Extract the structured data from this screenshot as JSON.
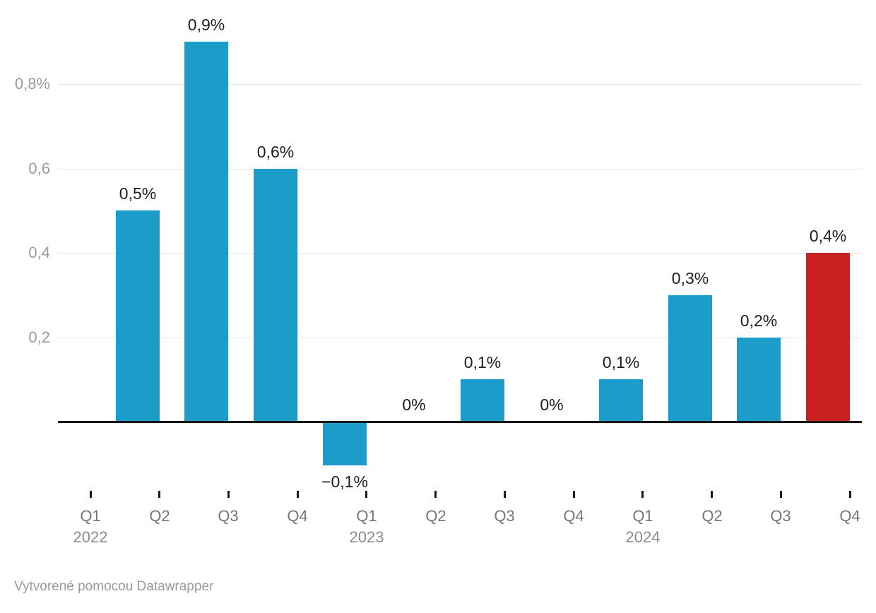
{
  "chart_data": {
    "type": "bar",
    "title": "",
    "xlabel": "",
    "ylabel": "",
    "unit": "%",
    "categories": [
      "Q1 2022",
      "Q2 2022",
      "Q3 2022",
      "Q4 2022",
      "Q1 2023",
      "Q2 2023",
      "Q3 2023",
      "Q4 2023",
      "Q1 2024",
      "Q2 2024",
      "Q3 2024",
      "Q4 2024"
    ],
    "values": [
      0.5,
      0.9,
      0.6,
      -0.1,
      0,
      0.1,
      0,
      0.1,
      0.3,
      0.2,
      0.4,
      null
    ],
    "value_labels": [
      "0,5%",
      "0,9%",
      "0,6%",
      "−0,1%",
      "0%",
      "0,1%",
      "0%",
      "0,1%",
      "0,3%",
      "0,2%",
      "0,4%",
      ""
    ],
    "highlight_index": 10,
    "ylim": [
      -0.2,
      1.0
    ],
    "grid": true,
    "legend": false,
    "y_axis_ticks": [
      {
        "value": 0.8,
        "label": "0,8%"
      },
      {
        "value": 0.6,
        "label": "0,6"
      },
      {
        "value": 0.4,
        "label": "0,4"
      },
      {
        "value": 0.2,
        "label": "0,2"
      }
    ],
    "x_axis_ticks": [
      {
        "quarter": "Q1",
        "year": "2022"
      },
      {
        "quarter": "Q2",
        "year": ""
      },
      {
        "quarter": "Q3",
        "year": ""
      },
      {
        "quarter": "Q4",
        "year": ""
      },
      {
        "quarter": "Q1",
        "year": "2023"
      },
      {
        "quarter": "Q2",
        "year": ""
      },
      {
        "quarter": "Q3",
        "year": ""
      },
      {
        "quarter": "Q4",
        "year": ""
      },
      {
        "quarter": "Q1",
        "year": "2024"
      },
      {
        "quarter": "Q2",
        "year": ""
      },
      {
        "quarter": "Q3",
        "year": ""
      },
      {
        "quarter": "Q4",
        "year": ""
      }
    ],
    "colors": {
      "bar": "#1c9dc9",
      "bar_highlight": "#c9211f",
      "gridline": "#e3e3e3",
      "zero_line": "#161616",
      "value_text": "#1d1d1d",
      "axis_text": "#9b9b9b",
      "x_tick_text": "#767676",
      "year_text": "#8c8c8c"
    }
  },
  "footer": {
    "attribution": "Vytvorené pomocou Datawrapper"
  }
}
